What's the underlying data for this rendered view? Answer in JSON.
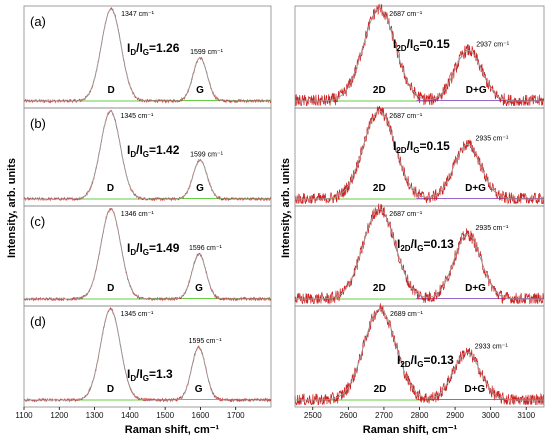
{
  "colors": {
    "data": "#cc2222",
    "fit": "#999999",
    "baseline_left": "#66cc44",
    "baseline_right_2d": "#66cc44",
    "baseline_right_dg": "#9966cc",
    "frame": "#888888"
  },
  "figure": {
    "left_ylabel": "Intensity, arb. units",
    "right_ylabel": "Intensity, arb. units",
    "left_xlabel": "Raman shift, cm⁻¹",
    "right_xlabel": "Raman shift, cm⁻¹"
  },
  "chart_data": [
    {
      "type": "line",
      "panel": "left",
      "xlim": [
        1100,
        1800
      ],
      "xticks": [
        1100,
        1200,
        1300,
        1400,
        1500,
        1600,
        1700
      ],
      "series": [
        {
          "label": "(a)",
          "peaks": [
            {
              "band": "D",
              "position": 1347,
              "label": "1347 cm⁻¹"
            },
            {
              "band": "G",
              "position": 1599,
              "label": "1599 cm⁻¹"
            }
          ],
          "ratio_main": "I",
          "ratio_sub1": "D",
          "ratio_mid": "/I",
          "ratio_sub2": "G",
          "ratio_value": "=1.26",
          "height_D": 1.0,
          "height_G": 0.47
        },
        {
          "label": "(b)",
          "peaks": [
            {
              "band": "D",
              "position": 1345,
              "label": "1345 cm⁻¹"
            },
            {
              "band": "G",
              "position": 1599,
              "label": "1599 cm⁻¹"
            }
          ],
          "ratio_main": "I",
          "ratio_sub1": "D",
          "ratio_mid": "/I",
          "ratio_sub2": "G",
          "ratio_value": "=1.42",
          "height_D": 1.0,
          "height_G": 0.44
        },
        {
          "label": "(c)",
          "peaks": [
            {
              "band": "D",
              "position": 1346,
              "label": "1346 cm⁻¹"
            },
            {
              "band": "G",
              "position": 1596,
              "label": "1596 cm⁻¹"
            }
          ],
          "ratio_main": "I",
          "ratio_sub1": "D",
          "ratio_mid": "/I",
          "ratio_sub2": "G",
          "ratio_value": "=1.49",
          "height_D": 1.0,
          "height_G": 0.5
        },
        {
          "label": "(d)",
          "peaks": [
            {
              "band": "D",
              "position": 1345,
              "label": "1345 cm⁻¹"
            },
            {
              "band": "G",
              "position": 1595,
              "label": "1595 cm⁻¹"
            }
          ],
          "ratio_main": "I",
          "ratio_sub1": "D",
          "ratio_mid": "/I",
          "ratio_sub2": "G",
          "ratio_value": "=1.3",
          "height_D": 1.0,
          "height_G": 0.58
        }
      ]
    },
    {
      "type": "line",
      "panel": "right",
      "xlim": [
        2450,
        3150
      ],
      "xticks": [
        2500,
        2600,
        2700,
        2800,
        2900,
        3000,
        3100
      ],
      "series": [
        {
          "peaks": [
            {
              "band": "2D",
              "position": 2687,
              "label": "2687 cm⁻¹"
            },
            {
              "band": "D+G",
              "position": 2937,
              "label": "2937 cm⁻¹"
            }
          ],
          "ratio_main": "I",
          "ratio_sub1": "2D",
          "ratio_mid": "/I",
          "ratio_sub2": "G",
          "ratio_value": "=0.15",
          "height_2D": 1.0,
          "height_DG": 0.55
        },
        {
          "peaks": [
            {
              "band": "2D",
              "position": 2687,
              "label": "2687 cm⁻¹"
            },
            {
              "band": "D+G",
              "position": 2935,
              "label": "2935 cm⁻¹"
            }
          ],
          "ratio_main": "I",
          "ratio_sub1": "2D",
          "ratio_mid": "/I",
          "ratio_sub2": "G",
          "ratio_value": "=0.15",
          "height_2D": 1.0,
          "height_DG": 0.62
        },
        {
          "peaks": [
            {
              "band": "2D",
              "position": 2687,
              "label": "2687 cm⁻¹"
            },
            {
              "band": "D+G",
              "position": 2935,
              "label": "2935 cm⁻¹"
            }
          ],
          "ratio_main": "I",
          "ratio_sub1": "2D",
          "ratio_mid": "/I",
          "ratio_sub2": "G",
          "ratio_value": "=0.13",
          "height_2D": 1.0,
          "height_DG": 0.72
        },
        {
          "peaks": [
            {
              "band": "2D",
              "position": 2689,
              "label": "2689 cm⁻¹"
            },
            {
              "band": "D+G",
              "position": 2933,
              "label": "2933 cm⁻¹"
            }
          ],
          "ratio_main": "I",
          "ratio_sub1": "2D",
          "ratio_mid": "/I",
          "ratio_sub2": "G",
          "ratio_value": "=0.13",
          "height_2D": 1.0,
          "height_DG": 0.52
        }
      ]
    }
  ]
}
